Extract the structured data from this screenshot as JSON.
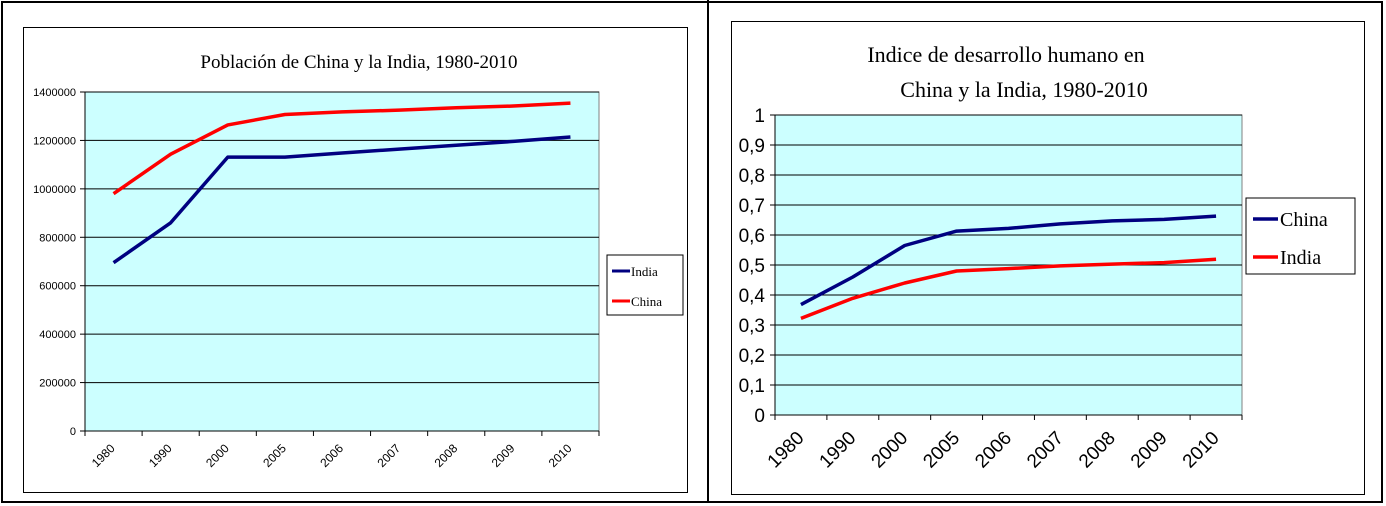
{
  "colors": {
    "plot_bg": "#ccffff",
    "china": "#ff0000",
    "china_right": "#000080",
    "india": "#000080",
    "india_right": "#ff0000",
    "grid": "#000000"
  },
  "chart_data": [
    {
      "type": "line",
      "title": "Población de China y la India, 1980-2010",
      "categories": [
        "1980",
        "1990",
        "2000",
        "2005",
        "2006",
        "2007",
        "2008",
        "2009",
        "2010"
      ],
      "ylim": [
        0,
        1400000
      ],
      "yticks": [
        "0",
        "200000",
        "400000",
        "600000",
        "800000",
        "1000000",
        "1200000",
        "1400000"
      ],
      "grid": true,
      "legend_position": "right",
      "series": [
        {
          "name": "India",
          "values": [
            695000,
            860000,
            1131000,
            1131000,
            1148000,
            1164000,
            1180000,
            1196000,
            1214000
          ]
        },
        {
          "name": "China",
          "values": [
            980000,
            1143000,
            1264000,
            1307000,
            1318000,
            1325000,
            1335000,
            1342000,
            1354000
          ]
        }
      ]
    },
    {
      "type": "line",
      "title": "Indice de desarrollo humano en China y la India, 1980-2010",
      "title_lines": [
        "Indice de desarrollo humano en",
        "China y la India, 1980-2010"
      ],
      "categories": [
        "1980",
        "1990",
        "2000",
        "2005",
        "2006",
        "2007",
        "2008",
        "2009",
        "2010"
      ],
      "ylim": [
        0,
        1
      ],
      "yticks": [
        "0",
        "0,1",
        "0,2",
        "0,3",
        "0,4",
        "0,5",
        "0,6",
        "0,7",
        "0,8",
        "0,9",
        "1"
      ],
      "grid": true,
      "legend_position": "right",
      "series": [
        {
          "name": "China",
          "values": [
            0.368,
            0.46,
            0.565,
            0.613,
            0.622,
            0.637,
            0.647,
            0.652,
            0.663
          ]
        },
        {
          "name": "India",
          "values": [
            0.322,
            0.389,
            0.44,
            0.48,
            0.488,
            0.497,
            0.503,
            0.508,
            0.519
          ]
        }
      ]
    }
  ]
}
